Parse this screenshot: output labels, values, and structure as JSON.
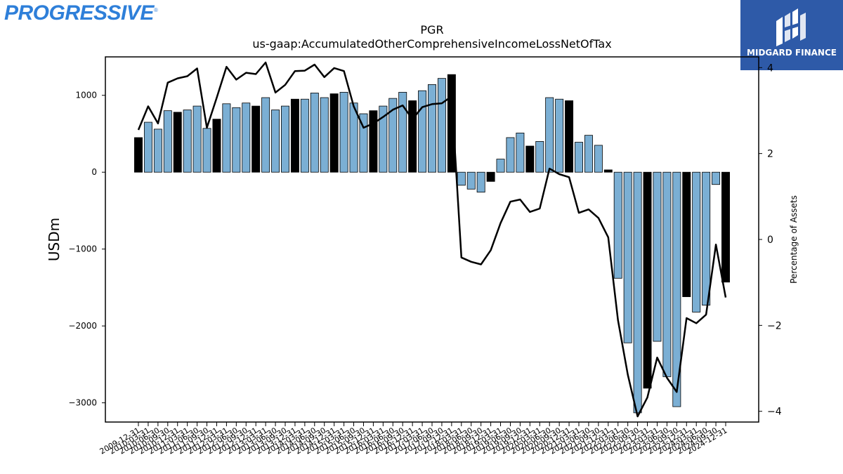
{
  "brand": {
    "logo_text": "PROGRESSIVE",
    "logo_mark": "®",
    "badge_text": "MIDGARD FINANCE",
    "badge_icon": "midgard-monogram-icon"
  },
  "colors": {
    "bar_blue": "#7bafd4",
    "bar_black": "#000000",
    "line": "#000000"
  },
  "chart_data": {
    "type": "bar",
    "title": "PGR",
    "subtitle": "us-gaap:AccumulatedOtherComprehensiveIncomeLossNetOfTax",
    "ylabel": "USDm",
    "y2label": "Percentage of Assets",
    "ylim": [
      -3250,
      1500
    ],
    "y2lim": [
      -4.25,
      4.25
    ],
    "yticks": [
      -3000,
      -2000,
      -1000,
      0,
      1000
    ],
    "y2ticks": [
      -4,
      -2,
      0,
      2,
      4
    ],
    "legend": "none",
    "grid": false,
    "categories": [
      "2009-12-31",
      "2010-03-31",
      "2010-06-30",
      "2010-09-30",
      "2010-12-31",
      "2011-03-31",
      "2011-06-30",
      "2011-09-30",
      "2011-12-31",
      "2012-03-31",
      "2012-06-30",
      "2012-09-30",
      "2012-12-31",
      "2013-03-31",
      "2013-06-30",
      "2013-09-30",
      "2013-12-31",
      "2014-03-31",
      "2014-06-30",
      "2014-09-30",
      "2014-12-31",
      "2015-03-31",
      "2015-06-30",
      "2015-09-30",
      "2015-12-31",
      "2016-03-31",
      "2016-06-30",
      "2016-09-30",
      "2016-12-31",
      "2017-03-31",
      "2017-06-30",
      "2017-09-30",
      "2017-12-31",
      "2018-03-31",
      "2018-06-30",
      "2018-09-30",
      "2018-12-31",
      "2019-03-31",
      "2019-06-30",
      "2019-09-30",
      "2019-12-31",
      "2020-03-31",
      "2020-06-30",
      "2020-09-30",
      "2020-12-31",
      "2021-03-31",
      "2021-06-30",
      "2021-09-30",
      "2021-12-31",
      "2022-03-31",
      "2022-06-30",
      "2022-09-30",
      "2022-12-31",
      "2023-03-31",
      "2023-06-30",
      "2023-09-30",
      "2023-12-31",
      "2024-03-31",
      "2024-06-30",
      "2024-09-30",
      "2024-12-31"
    ],
    "bar_values": [
      450,
      650,
      560,
      800,
      780,
      810,
      860,
      570,
      690,
      890,
      840,
      900,
      860,
      970,
      810,
      860,
      950,
      950,
      1030,
      970,
      1020,
      1040,
      900,
      760,
      800,
      860,
      960,
      1040,
      930,
      1060,
      1140,
      1220,
      1270,
      -170,
      -220,
      -260,
      -120,
      170,
      450,
      510,
      340,
      400,
      970,
      950,
      930,
      390,
      480,
      350,
      30,
      -1380,
      -2220,
      -3130,
      -2810,
      -2200,
      -2660,
      -3050,
      -1620,
      -1820,
      -1730,
      -160,
      -1430
    ],
    "year_end_flags": [
      1,
      0,
      0,
      0,
      1,
      0,
      0,
      0,
      1,
      0,
      0,
      0,
      1,
      0,
      0,
      0,
      1,
      0,
      0,
      0,
      1,
      0,
      0,
      0,
      1,
      0,
      0,
      0,
      1,
      0,
      0,
      0,
      1,
      0,
      0,
      0,
      1,
      0,
      0,
      0,
      1,
      0,
      0,
      0,
      1,
      0,
      0,
      0,
      1,
      0,
      0,
      0,
      1,
      0,
      0,
      0,
      1,
      0,
      0,
      0,
      1
    ],
    "pct_assets": [
      2.55,
      3.1,
      2.7,
      3.65,
      3.75,
      3.8,
      3.98,
      2.6,
      3.3,
      4.02,
      3.72,
      3.88,
      3.85,
      4.12,
      3.42,
      3.6,
      3.92,
      3.93,
      4.07,
      3.78,
      3.99,
      3.92,
      3.1,
      2.6,
      2.7,
      2.85,
      3.02,
      3.12,
      2.8,
      3.08,
      3.15,
      3.17,
      3.33,
      -0.42,
      -0.52,
      -0.58,
      -0.25,
      0.38,
      0.88,
      0.93,
      0.64,
      0.72,
      1.65,
      1.52,
      1.45,
      0.62,
      0.7,
      0.5,
      0.05,
      -1.88,
      -3.15,
      -4.12,
      -3.68,
      -2.75,
      -3.22,
      -3.55,
      -1.83,
      -1.95,
      -1.75,
      -0.12,
      -1.35
    ]
  }
}
